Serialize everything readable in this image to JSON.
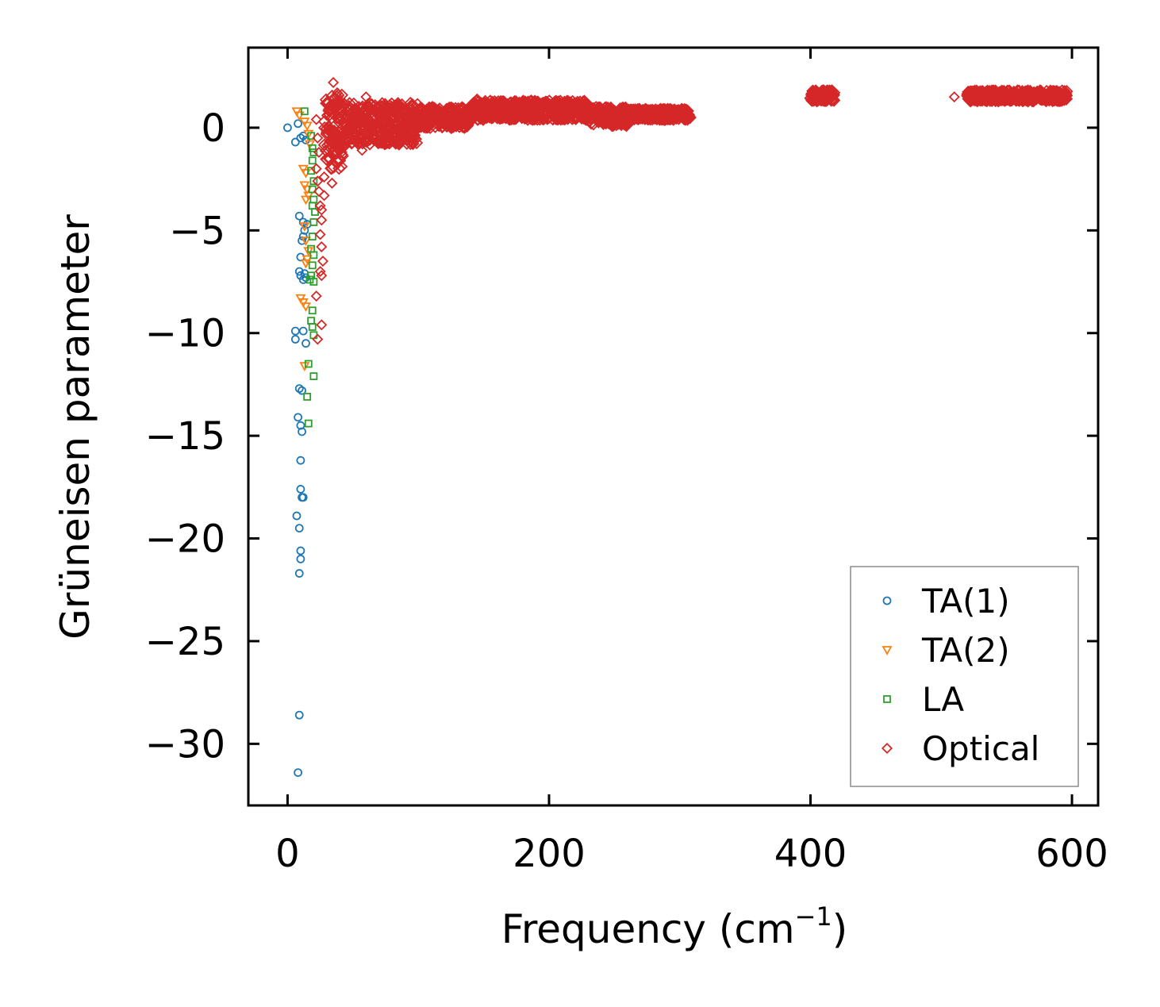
{
  "chart_data": {
    "type": "scatter",
    "title": "",
    "xlabel": "Frequency (cm",
    "xlabel_sup": "−1",
    "xlabel_tail": ")",
    "ylabel": "Grüneisen parameter",
    "xlim": [
      -30,
      620
    ],
    "ylim": [
      -33,
      3.9
    ],
    "xticks": [
      0,
      200,
      400,
      600
    ],
    "xtick_labels": [
      "0",
      "200",
      "400",
      "600"
    ],
    "yticks": [
      0,
      -5,
      -10,
      -15,
      -20,
      -25,
      -30
    ],
    "ytick_labels": [
      "0",
      "−5",
      "−10",
      "−15",
      "−20",
      "−25",
      "−30"
    ],
    "grid": false,
    "legend_position": "bottom-right",
    "series": [
      {
        "name": "TA(1)",
        "marker": "circle",
        "color": "#1f77b4",
        "points": [
          [
            0,
            0.0
          ],
          [
            6,
            -0.7
          ],
          [
            8,
            0.2
          ],
          [
            10,
            -0.5
          ],
          [
            12,
            -0.4
          ],
          [
            14,
            -0.6
          ],
          [
            9,
            -4.3
          ],
          [
            12,
            -4.6
          ],
          [
            13,
            -5.0
          ],
          [
            11,
            -5.5
          ],
          [
            12,
            -5.3
          ],
          [
            10,
            -6.3
          ],
          [
            9,
            -7.0
          ],
          [
            10,
            -7.2
          ],
          [
            13,
            -7.1
          ],
          [
            14,
            -7.3
          ],
          [
            12,
            -7.4
          ],
          [
            15,
            -4.7
          ],
          [
            6,
            -9.9
          ],
          [
            6,
            -10.3
          ],
          [
            12,
            -9.9
          ],
          [
            14,
            -10.5
          ],
          [
            9,
            -12.7
          ],
          [
            11,
            -12.8
          ],
          [
            8,
            -14.1
          ],
          [
            10,
            -14.5
          ],
          [
            11,
            -14.8
          ],
          [
            10,
            -16.2
          ],
          [
            10,
            -17.6
          ],
          [
            11,
            -18.0
          ],
          [
            12,
            -18.0
          ],
          [
            7,
            -18.9
          ],
          [
            9,
            -19.5
          ],
          [
            10,
            -20.6
          ],
          [
            10,
            -21.0
          ],
          [
            9,
            -21.7
          ],
          [
            9,
            -28.6
          ],
          [
            8,
            -31.4
          ]
        ]
      },
      {
        "name": "TA(2)",
        "marker": "triangle-down",
        "color": "#ff7f0e",
        "points": [
          [
            7,
            0.8
          ],
          [
            9,
            0.6
          ],
          [
            13,
            0.3
          ],
          [
            15,
            0.1
          ],
          [
            16,
            -0.3
          ],
          [
            17,
            -0.8
          ],
          [
            12,
            -2.0
          ],
          [
            14,
            -2.2
          ],
          [
            13,
            -2.8
          ],
          [
            15,
            -3.0
          ],
          [
            16,
            -3.3
          ],
          [
            14,
            -3.5
          ],
          [
            13,
            -4.8
          ],
          [
            14,
            -5.5
          ],
          [
            16,
            -6.0
          ],
          [
            15,
            -6.4
          ],
          [
            14,
            -6.6
          ],
          [
            10,
            -8.3
          ],
          [
            12,
            -8.5
          ],
          [
            14,
            -8.7
          ],
          [
            13,
            -11.6
          ]
        ]
      },
      {
        "name": "LA",
        "marker": "square",
        "color": "#2ca02c",
        "points": [
          [
            13,
            0.8
          ],
          [
            18,
            -0.4
          ],
          [
            19,
            -1.0
          ],
          [
            20,
            -1.2
          ],
          [
            19,
            -1.6
          ],
          [
            18,
            -2.1
          ],
          [
            20,
            -2.6
          ],
          [
            19,
            -3.0
          ],
          [
            20,
            -3.5
          ],
          [
            19,
            -3.8
          ],
          [
            21,
            -4.1
          ],
          [
            20,
            -4.6
          ],
          [
            19,
            -5.3
          ],
          [
            18,
            -5.9
          ],
          [
            20,
            -6.2
          ],
          [
            19,
            -6.7
          ],
          [
            18,
            -7.2
          ],
          [
            20,
            -7.5
          ],
          [
            17,
            -7.4
          ],
          [
            19,
            -8.9
          ],
          [
            18,
            -9.4
          ],
          [
            19,
            -9.7
          ],
          [
            20,
            -10.1
          ],
          [
            16,
            -11.5
          ],
          [
            20,
            -12.1
          ],
          [
            15,
            -13.1
          ],
          [
            16,
            -14.4
          ]
        ]
      },
      {
        "name": "Optical",
        "marker": "diamond",
        "color": "#d62728",
        "points": [
          [
            22,
            0.4
          ],
          [
            23,
            -0.5
          ],
          [
            24,
            -1.2
          ],
          [
            22,
            -2.0
          ],
          [
            23,
            -2.6
          ],
          [
            24,
            -3.1
          ],
          [
            25,
            -3.8
          ],
          [
            26,
            -4.5
          ],
          [
            25,
            -5.2
          ],
          [
            26,
            -5.8
          ],
          [
            27,
            -6.5
          ],
          [
            25,
            -7.0
          ],
          [
            26,
            -7.2
          ],
          [
            22,
            -8.2
          ],
          [
            26,
            -9.6
          ],
          [
            23,
            -10.3
          ],
          [
            35,
            2.2
          ],
          [
            38,
            1.7
          ],
          [
            40,
            1.3
          ],
          [
            30,
            0.6
          ],
          [
            33,
            -0.2
          ],
          [
            35,
            -0.6
          ],
          [
            38,
            -0.9
          ],
          [
            31,
            -1.5
          ],
          [
            35,
            -1.3
          ],
          [
            28,
            -2.4
          ],
          [
            34,
            -2.7
          ],
          [
            28,
            -3.3
          ],
          [
            26,
            -4.0
          ],
          [
            57,
            -1.1
          ],
          [
            60,
            1.5
          ],
          [
            48,
            0.9
          ],
          [
            55,
            0.4
          ],
          [
            70,
            1.0
          ],
          [
            42,
            0.8
          ],
          [
            45,
            -0.3
          ],
          [
            50,
            0.1
          ],
          [
            65,
            -0.4
          ],
          [
            75,
            0.6
          ],
          [
            80,
            0.2
          ],
          [
            90,
            -0.3
          ],
          [
            95,
            0.5
          ],
          [
            100,
            0.3
          ],
          [
            110,
            0.5
          ],
          [
            120,
            0.8
          ],
          [
            130,
            0.7
          ],
          [
            140,
            0.9
          ],
          [
            145,
            1.4
          ],
          [
            150,
            1.1
          ],
          [
            160,
            0.9
          ],
          [
            170,
            0.7
          ],
          [
            180,
            1.1
          ],
          [
            190,
            0.9
          ],
          [
            200,
            1.0
          ],
          [
            210,
            0.8
          ],
          [
            220,
            1.2
          ],
          [
            230,
            0.8
          ],
          [
            240,
            0.4
          ],
          [
            245,
            1.0
          ],
          [
            250,
            0.6
          ],
          [
            260,
            0.5
          ],
          [
            270,
            0.7
          ],
          [
            280,
            0.6
          ],
          [
            290,
            0.7
          ],
          [
            300,
            0.8
          ],
          [
            305,
            0.7
          ],
          [
            404,
            1.6
          ],
          [
            408,
            1.6
          ],
          [
            412,
            1.5
          ],
          [
            415,
            1.5
          ],
          [
            510,
            1.5
          ],
          [
            530,
            1.5
          ],
          [
            540,
            1.5
          ],
          [
            550,
            1.6
          ],
          [
            560,
            1.5
          ],
          [
            570,
            1.6
          ],
          [
            580,
            1.6
          ],
          [
            590,
            1.6
          ]
        ],
        "bands": [
          {
            "x": [
              28,
              45
            ],
            "y_low": -2.0,
            "y_high": 1.6
          },
          {
            "x": [
              45,
              100
            ],
            "y_low": -0.8,
            "y_high": 1.2
          },
          {
            "x": [
              100,
              140
            ],
            "y_low": 0.0,
            "y_high": 1.0
          },
          {
            "x": [
              140,
              230
            ],
            "y_low": 0.4,
            "y_high": 1.3
          },
          {
            "x": [
              230,
              260
            ],
            "y_low": 0.1,
            "y_high": 1.0
          },
          {
            "x": [
              260,
              308
            ],
            "y_low": 0.4,
            "y_high": 0.9
          },
          {
            "x": [
              400,
              418
            ],
            "y_low": 1.3,
            "y_high": 1.8
          },
          {
            "x": [
              520,
              596
            ],
            "y_low": 1.3,
            "y_high": 1.8
          }
        ]
      }
    ]
  }
}
